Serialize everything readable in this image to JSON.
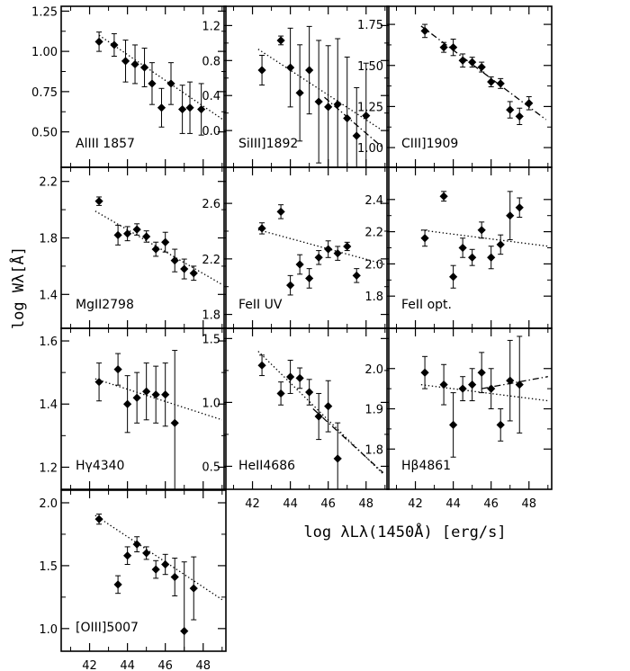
{
  "figure": {
    "ylabel": "log Wλ[Å]",
    "xlabel": "log λLλ(1450Å)   [erg/s]",
    "bottom_x_ticks": [
      "42",
      "44",
      "46",
      "48"
    ]
  },
  "chart_data": [
    {
      "type": "scatter",
      "label": "AlIII 1857",
      "xlim": [
        40.5,
        49.2
      ],
      "ylim": [
        0.28,
        1.28
      ],
      "y_ticks": [
        "0.50",
        "0.75",
        "1.00",
        "1.25"
      ],
      "x": [
        42.5,
        43.3,
        43.9,
        44.4,
        44.9,
        45.3,
        45.8,
        46.3,
        46.9,
        47.3,
        47.9
      ],
      "y": [
        1.06,
        1.04,
        0.94,
        0.92,
        0.9,
        0.8,
        0.65,
        0.8,
        0.64,
        0.65,
        0.64
      ],
      "err": [
        0.06,
        0.07,
        0.13,
        0.12,
        0.12,
        0.13,
        0.12,
        0.13,
        0.15,
        0.16,
        0.16
      ],
      "fits": [
        {
          "style": "dotted",
          "x": [
            42.5,
            49.0
          ],
          "y": [
            1.1,
            0.58
          ]
        }
      ]
    },
    {
      "type": "scatter",
      "label": "SiIII]1892",
      "xlim": [
        40.5,
        49.2
      ],
      "ylim": [
        -0.42,
        1.42
      ],
      "y_ticks": [
        "0.0",
        "0.4",
        "0.8",
        "1.2"
      ],
      "x": [
        42.5,
        43.5,
        44.0,
        44.5,
        45.0,
        45.5,
        46.0,
        46.5,
        47.0,
        47.5,
        48.0
      ],
      "y": [
        0.69,
        1.03,
        0.72,
        0.43,
        0.69,
        0.33,
        0.27,
        0.3,
        0.14,
        -0.06,
        0.17
      ],
      "err": [
        0.17,
        0.05,
        0.45,
        0.55,
        0.5,
        0.7,
        0.7,
        0.75,
        0.7,
        0.55,
        0.6
      ],
      "fits": [
        {
          "style": "dotted",
          "x": [
            42.3,
            48.8
          ],
          "y": [
            0.93,
            0.01
          ]
        },
        {
          "style": "dashdot",
          "x": [
            45.8,
            48.8
          ],
          "y": [
            0.38,
            -0.18
          ]
        }
      ]
    },
    {
      "type": "scatter",
      "label": "CIII]1909",
      "xlim": [
        40.5,
        49.2
      ],
      "ylim": [
        0.88,
        1.86
      ],
      "y_ticks": [
        "1.00",
        "1.25",
        "1.50",
        "1.75"
      ],
      "x": [
        42.5,
        43.5,
        44.0,
        44.5,
        45.0,
        45.5,
        46.0,
        46.5,
        47.0,
        47.5,
        48.0
      ],
      "y": [
        1.71,
        1.61,
        1.61,
        1.53,
        1.52,
        1.49,
        1.4,
        1.39,
        1.23,
        1.19,
        1.27
      ],
      "err": [
        0.04,
        0.03,
        0.05,
        0.04,
        0.03,
        0.03,
        0.03,
        0.03,
        0.05,
        0.05,
        0.04
      ],
      "fits": [
        {
          "style": "dashdot",
          "x": [
            42.3,
            48.9
          ],
          "y": [
            1.74,
            1.17
          ]
        }
      ]
    },
    {
      "type": "scatter",
      "label": "MgII2798",
      "xlim": [
        40.5,
        49.2
      ],
      "ylim": [
        1.16,
        2.3
      ],
      "y_ticks": [
        "1.4",
        "1.8",
        "2.2"
      ],
      "x": [
        42.5,
        43.5,
        44.0,
        44.5,
        45.0,
        45.5,
        46.0,
        46.5,
        47.0,
        47.5
      ],
      "y": [
        2.06,
        1.82,
        1.83,
        1.86,
        1.81,
        1.72,
        1.77,
        1.64,
        1.58,
        1.55
      ],
      "err": [
        0.03,
        0.07,
        0.05,
        0.04,
        0.04,
        0.05,
        0.07,
        0.08,
        0.07,
        0.05
      ],
      "fits": [
        {
          "style": "dotted",
          "x": [
            42.3,
            49.0
          ],
          "y": [
            1.99,
            1.47
          ]
        }
      ]
    },
    {
      "type": "scatter",
      "label": "FeII  UV",
      "xlim": [
        40.5,
        49.2
      ],
      "ylim": [
        1.7,
        2.86
      ],
      "y_ticks": [
        "1.8",
        "2.2",
        "2.6"
      ],
      "x": [
        42.5,
        43.5,
        44.0,
        44.5,
        45.0,
        45.5,
        46.0,
        46.5,
        47.0,
        47.5
      ],
      "y": [
        2.42,
        2.54,
        2.01,
        2.16,
        2.06,
        2.21,
        2.27,
        2.24,
        2.29,
        2.08
      ],
      "err": [
        0.04,
        0.05,
        0.07,
        0.07,
        0.07,
        0.05,
        0.06,
        0.05,
        0.03,
        0.05
      ],
      "fits": [
        {
          "style": "dotted",
          "x": [
            42.3,
            49.0
          ],
          "y": [
            2.41,
            2.16
          ]
        }
      ]
    },
    {
      "type": "scatter",
      "label": "FeII  opt.",
      "xlim": [
        40.5,
        49.2
      ],
      "ylim": [
        1.6,
        2.6
      ],
      "y_ticks": [
        "1.8",
        "2.0",
        "2.2",
        "2.4"
      ],
      "x": [
        42.5,
        43.5,
        44.0,
        44.5,
        45.0,
        45.5,
        46.0,
        46.5,
        47.0,
        47.5
      ],
      "y": [
        2.16,
        2.42,
        1.92,
        2.1,
        2.04,
        2.21,
        2.04,
        2.12,
        2.3,
        2.35
      ],
      "err": [
        0.05,
        0.03,
        0.07,
        0.06,
        0.05,
        0.05,
        0.07,
        0.06,
        0.15,
        0.06
      ],
      "fits": [
        {
          "style": "dotted",
          "x": [
            42.3,
            49.0
          ],
          "y": [
            2.21,
            2.11
          ]
        }
      ]
    },
    {
      "type": "scatter",
      "label": "Hγ4340",
      "xlim": [
        40.5,
        49.2
      ],
      "ylim": [
        1.13,
        1.64
      ],
      "y_ticks": [
        "1.2",
        "1.4",
        "1.6"
      ],
      "x": [
        42.5,
        43.5,
        44.0,
        44.5,
        45.0,
        45.5,
        46.0,
        46.5
      ],
      "y": [
        1.47,
        1.51,
        1.4,
        1.42,
        1.44,
        1.43,
        1.43,
        1.34
      ],
      "err": [
        0.06,
        0.05,
        0.09,
        0.08,
        0.09,
        0.09,
        0.1,
        0.23
      ],
      "fits": [
        {
          "style": "dotted",
          "x": [
            42.3,
            49.0
          ],
          "y": [
            1.48,
            1.35
          ]
        }
      ]
    },
    {
      "type": "scatter",
      "label": "HeII4686",
      "xlim": [
        40.5,
        49.2
      ],
      "ylim": [
        0.32,
        1.58
      ],
      "y_ticks": [
        "0.5",
        "1.0",
        "1.5"
      ],
      "x": [
        42.5,
        43.5,
        44.0,
        44.5,
        45.0,
        45.5,
        46.0,
        46.5
      ],
      "y": [
        1.29,
        1.07,
        1.2,
        1.19,
        1.08,
        0.89,
        0.97,
        0.56
      ],
      "err": [
        0.08,
        0.09,
        0.13,
        0.08,
        0.1,
        0.18,
        0.2,
        0.28
      ],
      "fits": [
        {
          "style": "dotted",
          "x": [
            42.3,
            48.9
          ],
          "y": [
            1.4,
            0.44
          ]
        },
        {
          "style": "dashdot",
          "x": [
            45.2,
            48.9
          ],
          "y": [
            0.95,
            0.45
          ]
        }
      ]
    },
    {
      "type": "scatter",
      "label": "Hβ4861",
      "xlim": [
        40.5,
        49.2
      ],
      "ylim": [
        1.7,
        2.1
      ],
      "y_ticks": [
        "1.8",
        "1.9",
        "2.0"
      ],
      "x": [
        42.5,
        43.5,
        44.0,
        44.5,
        45.0,
        45.5,
        46.0,
        46.5,
        47.0,
        47.5
      ],
      "y": [
        1.99,
        1.96,
        1.86,
        1.95,
        1.96,
        1.99,
        1.95,
        1.86,
        1.97,
        1.96
      ],
      "err": [
        0.04,
        0.05,
        0.08,
        0.03,
        0.04,
        0.05,
        0.05,
        0.04,
        0.1,
        0.12
      ],
      "fits": [
        {
          "style": "dotted",
          "x": [
            42.3,
            49.0
          ],
          "y": [
            1.96,
            1.92
          ]
        },
        {
          "style": "dashdot",
          "x": [
            45.5,
            49.0
          ],
          "y": [
            1.95,
            1.98
          ]
        }
      ]
    },
    {
      "type": "scatter",
      "label": "[OIII]5007",
      "xlim": [
        40.5,
        49.2
      ],
      "ylim": [
        0.82,
        2.1
      ],
      "y_ticks": [
        "1.0",
        "1.5",
        "2.0"
      ],
      "x": [
        42.5,
        43.5,
        44.0,
        44.5,
        45.0,
        45.5,
        46.0,
        46.5,
        47.0,
        47.5
      ],
      "y": [
        1.87,
        1.35,
        1.58,
        1.67,
        1.6,
        1.47,
        1.51,
        1.41,
        0.98,
        1.32
      ],
      "err": [
        0.04,
        0.07,
        0.07,
        0.06,
        0.05,
        0.07,
        0.08,
        0.15,
        0.55,
        0.25
      ],
      "fits": [
        {
          "style": "dotted",
          "x": [
            42.3,
            49.0
          ],
          "y": [
            1.9,
            1.23
          ]
        }
      ]
    }
  ]
}
